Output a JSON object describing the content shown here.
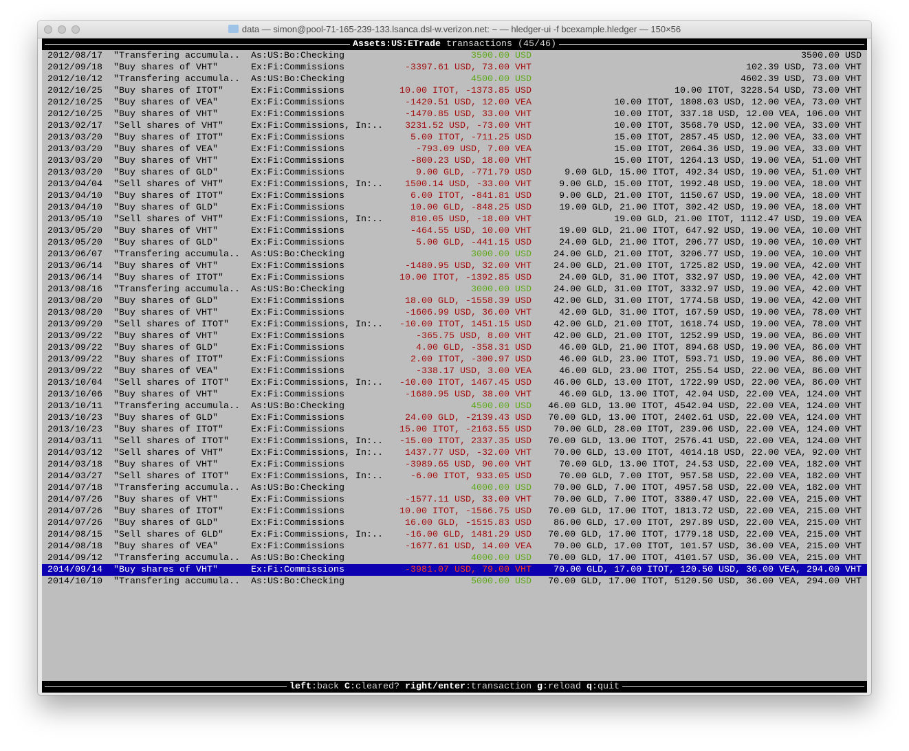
{
  "window": {
    "title": "data — simon@pool-71-165-239-133.lsanca.dsl-w.verizon.net: ~ — hledger-ui -f bcexample.hledger — 150×56"
  },
  "header": {
    "account": "Assets:US:ETrade",
    "suffix": " transactions (45/46)"
  },
  "colors": {
    "positive": "#5da91a",
    "negative": "#a30d0d",
    "selected_bg": "#0d00b0",
    "terminal_bg": "#bebebe"
  },
  "selected_index": 44,
  "rows": [
    {
      "date": "2012/08/17",
      "desc": "\"Transfering accumula..",
      "acct": "As:US:Bo:Checking",
      "amt": "3500.00 USD",
      "sign": "pos",
      "bal": "3500.00 USD"
    },
    {
      "date": "2012/09/18",
      "desc": "\"Buy shares of VHT\"",
      "acct": "Ex:Fi:Commissions",
      "amt": "-3397.61 USD, 73.00 VHT",
      "sign": "neg",
      "bal": "102.39 USD, 73.00 VHT"
    },
    {
      "date": "2012/10/12",
      "desc": "\"Transfering accumula..",
      "acct": "As:US:Bo:Checking",
      "amt": "4500.00 USD",
      "sign": "pos",
      "bal": "4602.39 USD, 73.00 VHT"
    },
    {
      "date": "2012/10/25",
      "desc": "\"Buy shares of ITOT\"",
      "acct": "Ex:Fi:Commissions",
      "amt": "10.00 ITOT, -1373.85 USD",
      "sign": "neg",
      "bal": "10.00 ITOT, 3228.54 USD, 73.00 VHT"
    },
    {
      "date": "2012/10/25",
      "desc": "\"Buy shares of VEA\"",
      "acct": "Ex:Fi:Commissions",
      "amt": "-1420.51 USD, 12.00 VEA",
      "sign": "neg",
      "bal": "10.00 ITOT, 1808.03 USD, 12.00 VEA, 73.00 VHT"
    },
    {
      "date": "2012/10/25",
      "desc": "\"Buy shares of VHT\"",
      "acct": "Ex:Fi:Commissions",
      "amt": "-1470.85 USD, 33.00 VHT",
      "sign": "neg",
      "bal": "10.00 ITOT, 337.18 USD, 12.00 VEA, 106.00 VHT"
    },
    {
      "date": "2013/02/17",
      "desc": "\"Sell shares of VHT\"",
      "acct": "Ex:Fi:Commissions, In:..",
      "amt": "3231.52 USD, -73.00 VHT",
      "sign": "neg",
      "bal": "10.00 ITOT, 3568.70 USD, 12.00 VEA, 33.00 VHT"
    },
    {
      "date": "2013/03/20",
      "desc": "\"Buy shares of ITOT\"",
      "acct": "Ex:Fi:Commissions",
      "amt": "5.00 ITOT, -711.25 USD",
      "sign": "neg",
      "bal": "15.00 ITOT, 2857.45 USD, 12.00 VEA, 33.00 VHT"
    },
    {
      "date": "2013/03/20",
      "desc": "\"Buy shares of VEA\"",
      "acct": "Ex:Fi:Commissions",
      "amt": "-793.09 USD, 7.00 VEA",
      "sign": "neg",
      "bal": "15.00 ITOT, 2064.36 USD, 19.00 VEA, 33.00 VHT"
    },
    {
      "date": "2013/03/20",
      "desc": "\"Buy shares of VHT\"",
      "acct": "Ex:Fi:Commissions",
      "amt": "-800.23 USD, 18.00 VHT",
      "sign": "neg",
      "bal": "15.00 ITOT, 1264.13 USD, 19.00 VEA, 51.00 VHT"
    },
    {
      "date": "2013/03/20",
      "desc": "\"Buy shares of GLD\"",
      "acct": "Ex:Fi:Commissions",
      "amt": "9.00 GLD, -771.79 USD",
      "sign": "neg",
      "bal": "9.00 GLD, 15.00 ITOT, 492.34 USD, 19.00 VEA, 51.00 VHT"
    },
    {
      "date": "2013/04/04",
      "desc": "\"Sell shares of VHT\"",
      "acct": "Ex:Fi:Commissions, In:..",
      "amt": "1500.14 USD, -33.00 VHT",
      "sign": "neg",
      "bal": "9.00 GLD, 15.00 ITOT, 1992.48 USD, 19.00 VEA, 18.00 VHT"
    },
    {
      "date": "2013/04/10",
      "desc": "\"Buy shares of ITOT\"",
      "acct": "Ex:Fi:Commissions",
      "amt": "6.00 ITOT, -841.81 USD",
      "sign": "neg",
      "bal": "9.00 GLD, 21.00 ITOT, 1150.67 USD, 19.00 VEA, 18.00 VHT"
    },
    {
      "date": "2013/04/10",
      "desc": "\"Buy shares of GLD\"",
      "acct": "Ex:Fi:Commissions",
      "amt": "10.00 GLD, -848.25 USD",
      "sign": "neg",
      "bal": "19.00 GLD, 21.00 ITOT, 302.42 USD, 19.00 VEA, 18.00 VHT"
    },
    {
      "date": "2013/05/10",
      "desc": "\"Sell shares of VHT\"",
      "acct": "Ex:Fi:Commissions, In:..",
      "amt": "810.05 USD, -18.00 VHT",
      "sign": "neg",
      "bal": "19.00 GLD, 21.00 ITOT, 1112.47 USD, 19.00 VEA"
    },
    {
      "date": "2013/05/20",
      "desc": "\"Buy shares of VHT\"",
      "acct": "Ex:Fi:Commissions",
      "amt": "-464.55 USD, 10.00 VHT",
      "sign": "neg",
      "bal": "19.00 GLD, 21.00 ITOT, 647.92 USD, 19.00 VEA, 10.00 VHT"
    },
    {
      "date": "2013/05/20",
      "desc": "\"Buy shares of GLD\"",
      "acct": "Ex:Fi:Commissions",
      "amt": "5.00 GLD, -441.15 USD",
      "sign": "neg",
      "bal": "24.00 GLD, 21.00 ITOT, 206.77 USD, 19.00 VEA, 10.00 VHT"
    },
    {
      "date": "2013/06/07",
      "desc": "\"Transfering accumula..",
      "acct": "As:US:Bo:Checking",
      "amt": "3000.00 USD",
      "sign": "pos",
      "bal": "24.00 GLD, 21.00 ITOT, 3206.77 USD, 19.00 VEA, 10.00 VHT"
    },
    {
      "date": "2013/06/14",
      "desc": "\"Buy shares of VHT\"",
      "acct": "Ex:Fi:Commissions",
      "amt": "-1480.95 USD, 32.00 VHT",
      "sign": "neg",
      "bal": "24.00 GLD, 21.00 ITOT, 1725.82 USD, 19.00 VEA, 42.00 VHT"
    },
    {
      "date": "2013/06/14",
      "desc": "\"Buy shares of ITOT\"",
      "acct": "Ex:Fi:Commissions",
      "amt": "10.00 ITOT, -1392.85 USD",
      "sign": "neg",
      "bal": "24.00 GLD, 31.00 ITOT, 332.97 USD, 19.00 VEA, 42.00 VHT"
    },
    {
      "date": "2013/08/16",
      "desc": "\"Transfering accumula..",
      "acct": "As:US:Bo:Checking",
      "amt": "3000.00 USD",
      "sign": "pos",
      "bal": "24.00 GLD, 31.00 ITOT, 3332.97 USD, 19.00 VEA, 42.00 VHT"
    },
    {
      "date": "2013/08/20",
      "desc": "\"Buy shares of GLD\"",
      "acct": "Ex:Fi:Commissions",
      "amt": "18.00 GLD, -1558.39 USD",
      "sign": "neg",
      "bal": "42.00 GLD, 31.00 ITOT, 1774.58 USD, 19.00 VEA, 42.00 VHT"
    },
    {
      "date": "2013/08/20",
      "desc": "\"Buy shares of VHT\"",
      "acct": "Ex:Fi:Commissions",
      "amt": "-1606.99 USD, 36.00 VHT",
      "sign": "neg",
      "bal": "42.00 GLD, 31.00 ITOT, 167.59 USD, 19.00 VEA, 78.00 VHT"
    },
    {
      "date": "2013/09/20",
      "desc": "\"Sell shares of ITOT\"",
      "acct": "Ex:Fi:Commissions, In:..",
      "amt": "-10.00 ITOT, 1451.15 USD",
      "sign": "neg",
      "bal": "42.00 GLD, 21.00 ITOT, 1618.74 USD, 19.00 VEA, 78.00 VHT"
    },
    {
      "date": "2013/09/22",
      "desc": "\"Buy shares of VHT\"",
      "acct": "Ex:Fi:Commissions",
      "amt": "-365.75 USD, 8.00 VHT",
      "sign": "neg",
      "bal": "42.00 GLD, 21.00 ITOT, 1252.99 USD, 19.00 VEA, 86.00 VHT"
    },
    {
      "date": "2013/09/22",
      "desc": "\"Buy shares of GLD\"",
      "acct": "Ex:Fi:Commissions",
      "amt": "4.00 GLD, -358.31 USD",
      "sign": "neg",
      "bal": "46.00 GLD, 21.00 ITOT, 894.68 USD, 19.00 VEA, 86.00 VHT"
    },
    {
      "date": "2013/09/22",
      "desc": "\"Buy shares of ITOT\"",
      "acct": "Ex:Fi:Commissions",
      "amt": "2.00 ITOT, -300.97 USD",
      "sign": "neg",
      "bal": "46.00 GLD, 23.00 ITOT, 593.71 USD, 19.00 VEA, 86.00 VHT"
    },
    {
      "date": "2013/09/22",
      "desc": "\"Buy shares of VEA\"",
      "acct": "Ex:Fi:Commissions",
      "amt": "-338.17 USD, 3.00 VEA",
      "sign": "neg",
      "bal": "46.00 GLD, 23.00 ITOT, 255.54 USD, 22.00 VEA, 86.00 VHT"
    },
    {
      "date": "2013/10/04",
      "desc": "\"Sell shares of ITOT\"",
      "acct": "Ex:Fi:Commissions, In:..",
      "amt": "-10.00 ITOT, 1467.45 USD",
      "sign": "neg",
      "bal": "46.00 GLD, 13.00 ITOT, 1722.99 USD, 22.00 VEA, 86.00 VHT"
    },
    {
      "date": "2013/10/06",
      "desc": "\"Buy shares of VHT\"",
      "acct": "Ex:Fi:Commissions",
      "amt": "-1680.95 USD, 38.00 VHT",
      "sign": "neg",
      "bal": "46.00 GLD, 13.00 ITOT, 42.04 USD, 22.00 VEA, 124.00 VHT"
    },
    {
      "date": "2013/10/11",
      "desc": "\"Transfering accumula..",
      "acct": "As:US:Bo:Checking",
      "amt": "4500.00 USD",
      "sign": "pos",
      "bal": "46.00 GLD, 13.00 ITOT, 4542.04 USD, 22.00 VEA, 124.00 VHT"
    },
    {
      "date": "2013/10/23",
      "desc": "\"Buy shares of GLD\"",
      "acct": "Ex:Fi:Commissions",
      "amt": "24.00 GLD, -2139.43 USD",
      "sign": "neg",
      "bal": "70.00 GLD, 13.00 ITOT, 2402.61 USD, 22.00 VEA, 124.00 VHT"
    },
    {
      "date": "2013/10/23",
      "desc": "\"Buy shares of ITOT\"",
      "acct": "Ex:Fi:Commissions",
      "amt": "15.00 ITOT, -2163.55 USD",
      "sign": "neg",
      "bal": "70.00 GLD, 28.00 ITOT, 239.06 USD, 22.00 VEA, 124.00 VHT"
    },
    {
      "date": "2014/03/11",
      "desc": "\"Sell shares of ITOT\"",
      "acct": "Ex:Fi:Commissions, In:..",
      "amt": "-15.00 ITOT, 2337.35 USD",
      "sign": "neg",
      "bal": "70.00 GLD, 13.00 ITOT, 2576.41 USD, 22.00 VEA, 124.00 VHT"
    },
    {
      "date": "2014/03/12",
      "desc": "\"Sell shares of VHT\"",
      "acct": "Ex:Fi:Commissions, In:..",
      "amt": "1437.77 USD, -32.00 VHT",
      "sign": "neg",
      "bal": "70.00 GLD, 13.00 ITOT, 4014.18 USD, 22.00 VEA, 92.00 VHT"
    },
    {
      "date": "2014/03/18",
      "desc": "\"Buy shares of VHT\"",
      "acct": "Ex:Fi:Commissions",
      "amt": "-3989.65 USD, 90.00 VHT",
      "sign": "neg",
      "bal": "70.00 GLD, 13.00 ITOT, 24.53 USD, 22.00 VEA, 182.00 VHT"
    },
    {
      "date": "2014/03/27",
      "desc": "\"Sell shares of ITOT\"",
      "acct": "Ex:Fi:Commissions, In:..",
      "amt": "-6.00 ITOT, 933.05 USD",
      "sign": "neg",
      "bal": "70.00 GLD, 7.00 ITOT, 957.58 USD, 22.00 VEA, 182.00 VHT"
    },
    {
      "date": "2014/07/18",
      "desc": "\"Transfering accumula..",
      "acct": "As:US:Bo:Checking",
      "amt": "4000.00 USD",
      "sign": "pos",
      "bal": "70.00 GLD, 7.00 ITOT, 4957.58 USD, 22.00 VEA, 182.00 VHT"
    },
    {
      "date": "2014/07/26",
      "desc": "\"Buy shares of VHT\"",
      "acct": "Ex:Fi:Commissions",
      "amt": "-1577.11 USD, 33.00 VHT",
      "sign": "neg",
      "bal": "70.00 GLD, 7.00 ITOT, 3380.47 USD, 22.00 VEA, 215.00 VHT"
    },
    {
      "date": "2014/07/26",
      "desc": "\"Buy shares of ITOT\"",
      "acct": "Ex:Fi:Commissions",
      "amt": "10.00 ITOT, -1566.75 USD",
      "sign": "neg",
      "bal": "70.00 GLD, 17.00 ITOT, 1813.72 USD, 22.00 VEA, 215.00 VHT"
    },
    {
      "date": "2014/07/26",
      "desc": "\"Buy shares of GLD\"",
      "acct": "Ex:Fi:Commissions",
      "amt": "16.00 GLD, -1515.83 USD",
      "sign": "neg",
      "bal": "86.00 GLD, 17.00 ITOT, 297.89 USD, 22.00 VEA, 215.00 VHT"
    },
    {
      "date": "2014/08/15",
      "desc": "\"Sell shares of GLD\"",
      "acct": "Ex:Fi:Commissions, In:..",
      "amt": "-16.00 GLD, 1481.29 USD",
      "sign": "neg",
      "bal": "70.00 GLD, 17.00 ITOT, 1779.18 USD, 22.00 VEA, 215.00 VHT"
    },
    {
      "date": "2014/08/18",
      "desc": "\"Buy shares of VEA\"",
      "acct": "Ex:Fi:Commissions",
      "amt": "-1677.61 USD, 14.00 VEA",
      "sign": "neg",
      "bal": "70.00 GLD, 17.00 ITOT, 101.57 USD, 36.00 VEA, 215.00 VHT"
    },
    {
      "date": "2014/09/12",
      "desc": "\"Transfering accumula..",
      "acct": "As:US:Bo:Checking",
      "amt": "4000.00 USD",
      "sign": "pos",
      "bal": "70.00 GLD, 17.00 ITOT, 4101.57 USD, 36.00 VEA, 215.00 VHT"
    },
    {
      "date": "2014/09/14",
      "desc": "\"Buy shares of VHT\"",
      "acct": "Ex:Fi:Commissions",
      "amt": "-3981.07 USD, 79.00 VHT",
      "sign": "neg",
      "bal": "70.00 GLD, 17.00 ITOT, 120.50 USD, 36.00 VEA, 294.00 VHT"
    },
    {
      "date": "2014/10/10",
      "desc": "\"Transfering accumula..",
      "acct": "As:US:Bo:Checking",
      "amt": "5000.00 USD",
      "sign": "pos",
      "bal": "70.00 GLD, 17.00 ITOT, 5120.50 USD, 36.00 VEA, 294.00 VHT"
    }
  ],
  "footer": {
    "keys": [
      {
        "key": "left",
        "label": ":back"
      },
      {
        "key": "C",
        "label": ":cleared?"
      },
      {
        "key": "right/enter",
        "label": ":transaction"
      },
      {
        "key": "g",
        "label": ":reload"
      },
      {
        "key": "q",
        "label": ":quit"
      }
    ]
  }
}
